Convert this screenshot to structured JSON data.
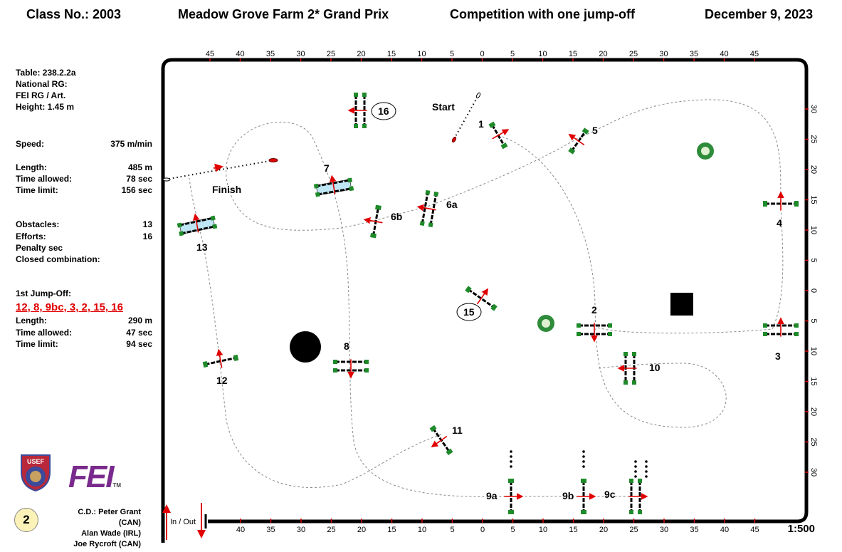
{
  "header": {
    "class_no": "Class No.: 2003",
    "title": "Meadow Grove Farm 2* Grand Prix",
    "competition": "Competition with one jump-off",
    "date": "December 9, 2023"
  },
  "info": {
    "table": "Table: 238.2.2a",
    "national_rg": "National RG:",
    "fei_rg": "FEI RG / Art.",
    "height": "Height: 1.45  m",
    "speed_label": "Speed:",
    "speed_value": "375  m/min",
    "length_label": "Length:",
    "length_value": "485    m",
    "time_allowed_label": "Time allowed:",
    "time_allowed_value": "78  sec",
    "time_limit_label": "Time limit:",
    "time_limit_value": "156  sec",
    "obstacles_label": "Obstacles:",
    "obstacles_value": "13",
    "efforts_label": "Efforts:",
    "efforts_value": "16",
    "penalty_label": "Penalty sec",
    "closed_label": "Closed combination:"
  },
  "jump_off": {
    "heading": "1st Jump-Off:",
    "sequence": "12, 8, 9bc, 3, 2, 15, 16",
    "length_label": "Length:",
    "length_value": "290    m",
    "time_allowed_label": "Time allowed:",
    "time_allowed_value": "47  sec",
    "time_limit_label": "Time limit:",
    "time_limit_value": "94  sec"
  },
  "arena": {
    "top_ticks": [
      "45",
      "40",
      "35",
      "30",
      "25",
      "20",
      "15",
      "10",
      "5",
      "0",
      "5",
      "10",
      "15",
      "20",
      "25",
      "30",
      "35",
      "40",
      "45"
    ],
    "bottom_ticks": [
      "40",
      "35",
      "30",
      "25",
      "20",
      "15",
      "10",
      "5",
      "0",
      "5",
      "10",
      "15",
      "20",
      "25",
      "30",
      "35",
      "40",
      "45"
    ],
    "right_ticks": [
      "30",
      "25",
      "20",
      "15",
      "10",
      "5",
      "0",
      "5",
      "10",
      "15",
      "20",
      "25",
      "30"
    ],
    "start_label": "Start",
    "finish_label": "Finish",
    "in_out_label": "In / Out",
    "scale": "1:500",
    "fences": [
      "1",
      "2",
      "3",
      "4",
      "5",
      "6a",
      "6b",
      "7",
      "8",
      "9a",
      "9b",
      "9c",
      "10",
      "11",
      "12",
      "13",
      "15",
      "16"
    ]
  },
  "credits": {
    "line1": "C.D.: Peter Grant (CAN)",
    "line2": "Alan Wade (IRL)",
    "line3": "Joe Rycroft (CAN)",
    "badge": "2"
  },
  "logos": {
    "usef": "USEF",
    "fei": "FEI"
  },
  "colors": {
    "arrow": "#e00000",
    "pole": "#000000",
    "wing": "#1f8a2a",
    "water": "#bfe6f5",
    "jumpoff": "#e00000"
  }
}
